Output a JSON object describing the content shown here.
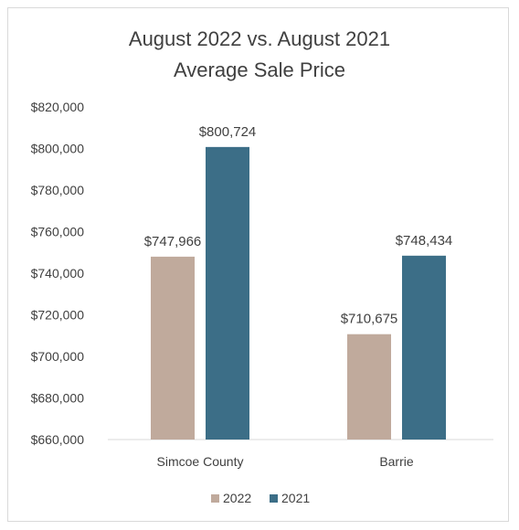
{
  "chart_data": {
    "type": "bar",
    "title": [
      "August 2022 vs. August 2021",
      "Average Sale Price"
    ],
    "categories": [
      "Simcoe County",
      "Barrie"
    ],
    "series": [
      {
        "name": "2022",
        "color": "#c0aa9c",
        "values": [
          747966,
          710675
        ],
        "labels": [
          "$747,966",
          "$710,675"
        ]
      },
      {
        "name": "2021",
        "color": "#3c6e87",
        "values": [
          800724,
          748434
        ],
        "labels": [
          "$800,724",
          "$748,434"
        ]
      }
    ],
    "ylim": [
      660000,
      820000
    ],
    "yticks": [
      660000,
      680000,
      700000,
      720000,
      740000,
      760000,
      780000,
      800000,
      820000
    ],
    "ytick_labels": [
      "$660,000",
      "$680,000",
      "$700,000",
      "$720,000",
      "$740,000",
      "$760,000",
      "$780,000",
      "$800,000",
      "$820,000"
    ],
    "grid": false,
    "legend_position": "bottom"
  }
}
